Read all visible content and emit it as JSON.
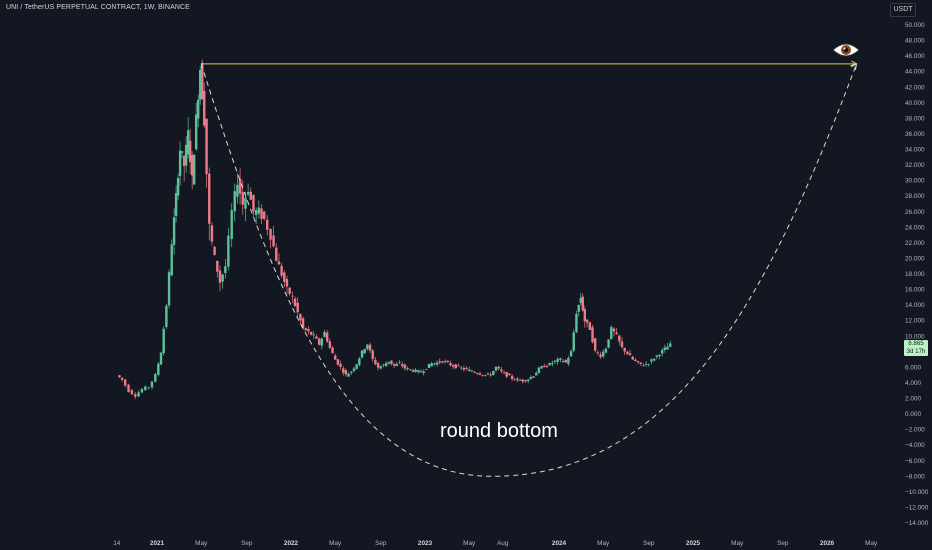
{
  "header": {
    "title": "UNI / TetherUS PERPETUAL CONTRACT, 1W, BINANCE",
    "currency": "USDT"
  },
  "price_tag": {
    "price": "8.865",
    "countdown": "3d 17h"
  },
  "chart_data": {
    "type": "candlestick",
    "y_ticks": [
      "50.000",
      "48.000",
      "46.000",
      "44.000",
      "42.000",
      "40.000",
      "38.000",
      "36.000",
      "34.000",
      "32.000",
      "30.000",
      "28.000",
      "26.000",
      "24.000",
      "22.000",
      "20.000",
      "18.000",
      "16.000",
      "14.000",
      "12.000",
      "10.000",
      "8.000",
      "6.000",
      "4.000",
      "2.000",
      "0.000",
      "−2.000",
      "−4.000",
      "−6.000",
      "−8.000",
      "−10.000",
      "−12.000",
      "−14.000"
    ],
    "ylim": [
      -14,
      50
    ],
    "x_ticks": [
      {
        "label": "14",
        "t": 2020.7,
        "bold": false
      },
      {
        "label": "2021",
        "t": 2021.0,
        "bold": true
      },
      {
        "label": "May",
        "t": 2021.33,
        "bold": false
      },
      {
        "label": "Sep",
        "t": 2021.67,
        "bold": false
      },
      {
        "label": "2022",
        "t": 2022.0,
        "bold": true
      },
      {
        "label": "May",
        "t": 2022.33,
        "bold": false
      },
      {
        "label": "Sep",
        "t": 2022.67,
        "bold": false
      },
      {
        "label": "2023",
        "t": 2023.0,
        "bold": true
      },
      {
        "label": "May",
        "t": 2023.33,
        "bold": false
      },
      {
        "label": "Aug",
        "t": 2023.58,
        "bold": false
      },
      {
        "label": "2024",
        "t": 2024.0,
        "bold": true
      },
      {
        "label": "May",
        "t": 2024.33,
        "bold": false
      },
      {
        "label": "Sep",
        "t": 2024.67,
        "bold": false
      },
      {
        "label": "2025",
        "t": 2025.0,
        "bold": true
      },
      {
        "label": "May",
        "t": 2025.33,
        "bold": false
      },
      {
        "label": "Sep",
        "t": 2025.67,
        "bold": false
      },
      {
        "label": "2026",
        "t": 2026.0,
        "bold": true
      },
      {
        "label": "May",
        "t": 2026.33,
        "bold": false
      }
    ],
    "price_path": [
      [
        2020.71,
        5.0
      ],
      [
        2020.75,
        4.4
      ],
      [
        2020.8,
        3.0
      ],
      [
        2020.85,
        2.4
      ],
      [
        2020.9,
        3.2
      ],
      [
        2020.95,
        3.5
      ],
      [
        2021.0,
        5.0
      ],
      [
        2021.04,
        8.0
      ],
      [
        2021.08,
        14.0
      ],
      [
        2021.12,
        22.0
      ],
      [
        2021.15,
        28.0
      ],
      [
        2021.18,
        34.0
      ],
      [
        2021.21,
        32.0
      ],
      [
        2021.24,
        36.0
      ],
      [
        2021.27,
        30.0
      ],
      [
        2021.3,
        38.0
      ],
      [
        2021.33,
        44.5
      ],
      [
        2021.36,
        38.0
      ],
      [
        2021.4,
        24.0
      ],
      [
        2021.44,
        20.0
      ],
      [
        2021.48,
        17.0
      ],
      [
        2021.52,
        19.0
      ],
      [
        2021.57,
        26.0
      ],
      [
        2021.61,
        30.0
      ],
      [
        2021.65,
        27.0
      ],
      [
        2021.69,
        29.0
      ],
      [
        2021.73,
        26.0
      ],
      [
        2021.77,
        26.0
      ],
      [
        2021.81,
        25.0
      ],
      [
        2021.86,
        23.0
      ],
      [
        2021.9,
        20.0
      ],
      [
        2021.94,
        18.0
      ],
      [
        2021.98,
        16.0
      ],
      [
        2022.02,
        15.0
      ],
      [
        2022.06,
        13.0
      ],
      [
        2022.1,
        11.0
      ],
      [
        2022.14,
        10.5
      ],
      [
        2022.18,
        10.0
      ],
      [
        2022.22,
        9.0
      ],
      [
        2022.26,
        10.5
      ],
      [
        2022.3,
        8.5
      ],
      [
        2022.34,
        7.0
      ],
      [
        2022.38,
        6.0
      ],
      [
        2022.42,
        5.0
      ],
      [
        2022.46,
        5.5
      ],
      [
        2022.5,
        6.5
      ],
      [
        2022.54,
        8.0
      ],
      [
        2022.58,
        9.0
      ],
      [
        2022.62,
        7.0
      ],
      [
        2022.66,
        6.0
      ],
      [
        2022.7,
        6.3
      ],
      [
        2022.74,
        6.8
      ],
      [
        2022.78,
        6.2
      ],
      [
        2022.82,
        6.5
      ],
      [
        2022.86,
        5.9
      ],
      [
        2022.9,
        5.7
      ],
      [
        2022.94,
        5.5
      ],
      [
        2022.98,
        5.4
      ],
      [
        2023.02,
        6.0
      ],
      [
        2023.06,
        6.5
      ],
      [
        2023.1,
        6.6
      ],
      [
        2023.14,
        6.8
      ],
      [
        2023.18,
        6.5
      ],
      [
        2023.22,
        6.2
      ],
      [
        2023.26,
        6.0
      ],
      [
        2023.3,
        5.8
      ],
      [
        2023.34,
        5.6
      ],
      [
        2023.38,
        5.4
      ],
      [
        2023.42,
        5.2
      ],
      [
        2023.46,
        5.0
      ],
      [
        2023.5,
        5.1
      ],
      [
        2023.54,
        6.0
      ],
      [
        2023.58,
        5.4
      ],
      [
        2023.62,
        5.0
      ],
      [
        2023.66,
        4.6
      ],
      [
        2023.7,
        4.4
      ],
      [
        2023.74,
        4.3
      ],
      [
        2023.78,
        4.5
      ],
      [
        2023.82,
        5.0
      ],
      [
        2023.86,
        5.8
      ],
      [
        2023.9,
        6.2
      ],
      [
        2023.94,
        6.4
      ],
      [
        2023.98,
        6.8
      ],
      [
        2024.02,
        7.0
      ],
      [
        2024.06,
        6.6
      ],
      [
        2024.1,
        8.0
      ],
      [
        2024.14,
        13.0
      ],
      [
        2024.17,
        15.0
      ],
      [
        2024.2,
        12.0
      ],
      [
        2024.24,
        11.0
      ],
      [
        2024.28,
        8.0
      ],
      [
        2024.32,
        7.5
      ],
      [
        2024.36,
        8.5
      ],
      [
        2024.4,
        11.0
      ],
      [
        2024.44,
        10.0
      ],
      [
        2024.48,
        8.5
      ],
      [
        2024.52,
        7.8
      ],
      [
        2024.56,
        7.0
      ],
      [
        2024.6,
        6.5
      ],
      [
        2024.64,
        6.3
      ],
      [
        2024.68,
        6.6
      ],
      [
        2024.72,
        7.2
      ],
      [
        2024.76,
        7.8
      ],
      [
        2024.8,
        8.4
      ],
      [
        2024.84,
        8.9
      ]
    ],
    "horizontal_line": {
      "value": 45.0,
      "t_start": 2021.33,
      "t_end": 2026.22,
      "color": "#e0c850"
    },
    "projection_arc": {
      "t_start": 2021.33,
      "v_start": 45.0,
      "t_bottom": 2023.5,
      "v_bottom": -8.0,
      "t_end": 2026.22,
      "v_end": 45.0
    },
    "annotation": "round bottom",
    "up_color": "#5cc29a",
    "down_color": "#ef7b8a"
  }
}
